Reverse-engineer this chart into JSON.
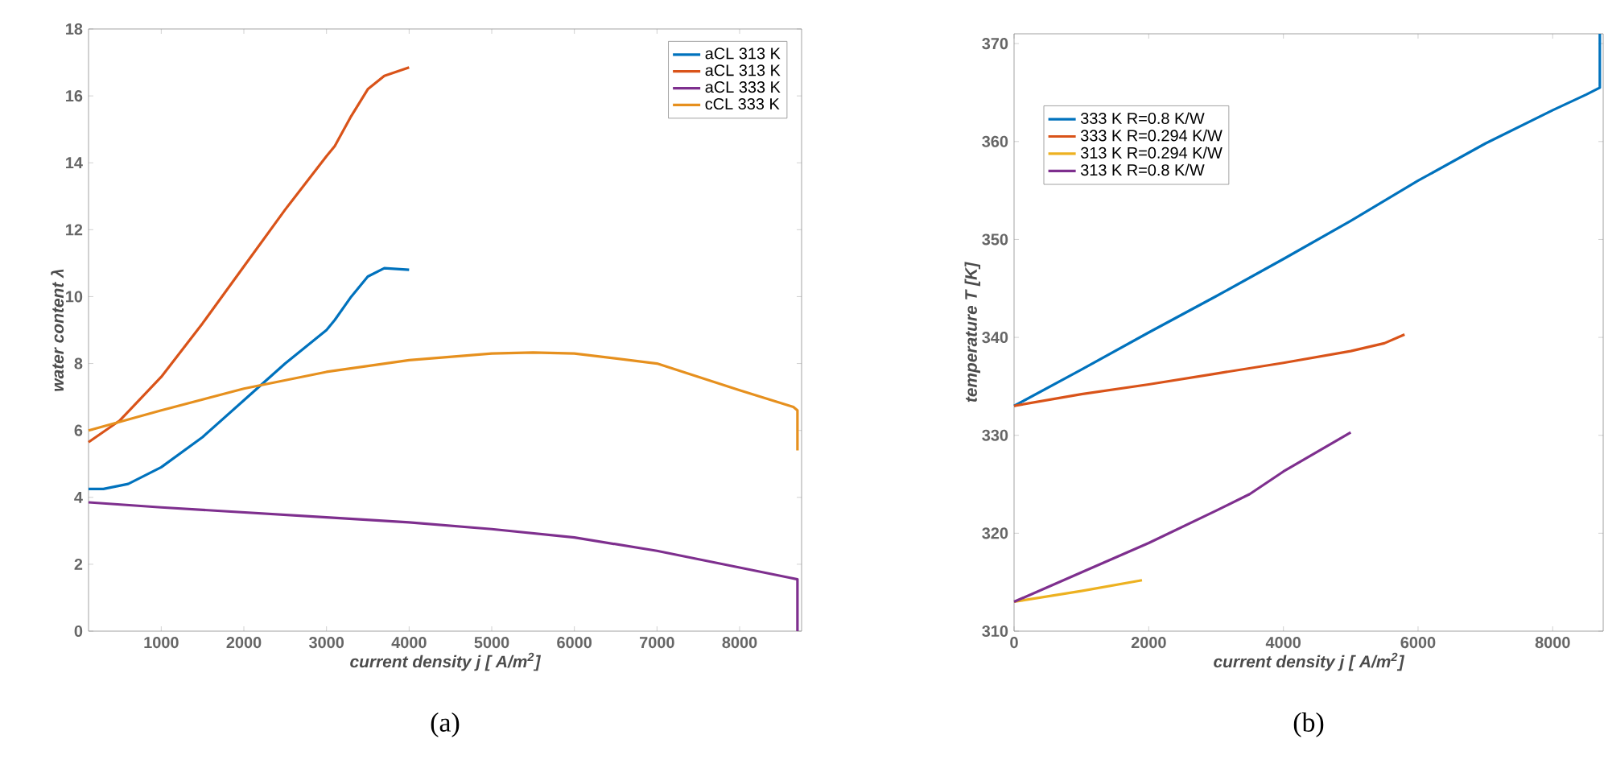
{
  "chart_data": [
    {
      "type": "line",
      "xlabel": "current density j [ A/m$^{2}$]",
      "ylabel": "water content λ",
      "annotations": [
        "(a)"
      ],
      "xlim": [
        120,
        8750
      ],
      "ylim": [
        0,
        18
      ],
      "xticks": [
        1000,
        2000,
        3000,
        4000,
        5000,
        6000,
        7000,
        8000
      ],
      "yticks": [
        0,
        2,
        4,
        6,
        8,
        10,
        12,
        14,
        16,
        18
      ],
      "grid": false,
      "legend": "top right",
      "series": [
        {
          "name": "aCL 313 K",
          "color": "#0072bd",
          "x": [
            120,
            300,
            600,
            1000,
            1500,
            2000,
            2500,
            3000,
            3100,
            3300,
            3500,
            3700,
            4000
          ],
          "values": [
            4.25,
            4.25,
            4.4,
            4.9,
            5.8,
            6.9,
            8.0,
            9.0,
            9.3,
            10.0,
            10.6,
            10.85,
            10.8
          ]
        },
        {
          "name": "aCL 313 K",
          "color": "#d95319",
          "x": [
            120,
            500,
            1000,
            1500,
            2000,
            2500,
            3000,
            3100,
            3300,
            3500,
            3700,
            4000
          ],
          "values": [
            5.65,
            6.3,
            7.6,
            9.2,
            10.9,
            12.6,
            14.2,
            14.5,
            15.4,
            16.2,
            16.6,
            16.85
          ]
        },
        {
          "name": "aCL 333 K",
          "color": "#7e2f8e",
          "x": [
            120,
            1000,
            2000,
            3000,
            4000,
            5000,
            6000,
            7000,
            8000,
            8600,
            8700,
            8700
          ],
          "values": [
            3.85,
            3.7,
            3.55,
            3.4,
            3.25,
            3.05,
            2.8,
            2.4,
            1.9,
            1.6,
            1.55,
            0
          ]
        },
        {
          "name": "cCL 333 K",
          "color": "#e6901e",
          "x": [
            120,
            1000,
            2000,
            3000,
            4000,
            5000,
            5500,
            6000,
            7000,
            8000,
            8650,
            8700,
            8700
          ],
          "values": [
            6.0,
            6.6,
            7.25,
            7.75,
            8.1,
            8.3,
            8.33,
            8.3,
            8.0,
            7.2,
            6.7,
            6.6,
            5.4
          ]
        }
      ]
    },
    {
      "type": "line",
      "xlabel": "current density j [ A/m$^{2}$]",
      "ylabel": "temperature T [K]",
      "annotations": [
        "(b)"
      ],
      "xlim": [
        0,
        8750
      ],
      "ylim": [
        310,
        371
      ],
      "xticks": [
        0,
        2000,
        4000,
        6000,
        8000
      ],
      "yticks": [
        310,
        320,
        330,
        340,
        350,
        360,
        370
      ],
      "grid": false,
      "legend": "top left",
      "series": [
        {
          "name": "333 K R=0.8 K/W",
          "color": "#0072bd",
          "x": [
            0,
            1000,
            2000,
            3000,
            4000,
            5000,
            6000,
            7000,
            8000,
            8500,
            8700,
            8700
          ],
          "values": [
            333,
            336.7,
            340.5,
            344.2,
            348,
            351.9,
            356,
            359.8,
            363.2,
            364.8,
            365.5,
            371
          ]
        },
        {
          "name": "333 K R=0.294 K/W",
          "color": "#d95319",
          "x": [
            0,
            1000,
            2000,
            3000,
            4000,
            5000,
            5500,
            5800
          ],
          "values": [
            333,
            334.2,
            335.2,
            336.3,
            337.4,
            338.6,
            339.4,
            340.3
          ]
        },
        {
          "name": "313 K R=0.294 K/W",
          "color": "#edb120",
          "x": [
            0,
            1000,
            1900
          ],
          "values": [
            313,
            314.1,
            315.2
          ]
        },
        {
          "name": "313 K R=0.8 K/W",
          "color": "#7e2f8e",
          "x": [
            0,
            1000,
            2000,
            3000,
            3500,
            4000,
            5000
          ],
          "values": [
            313,
            316,
            319,
            322.3,
            324,
            326.3,
            330.3
          ]
        }
      ]
    }
  ]
}
